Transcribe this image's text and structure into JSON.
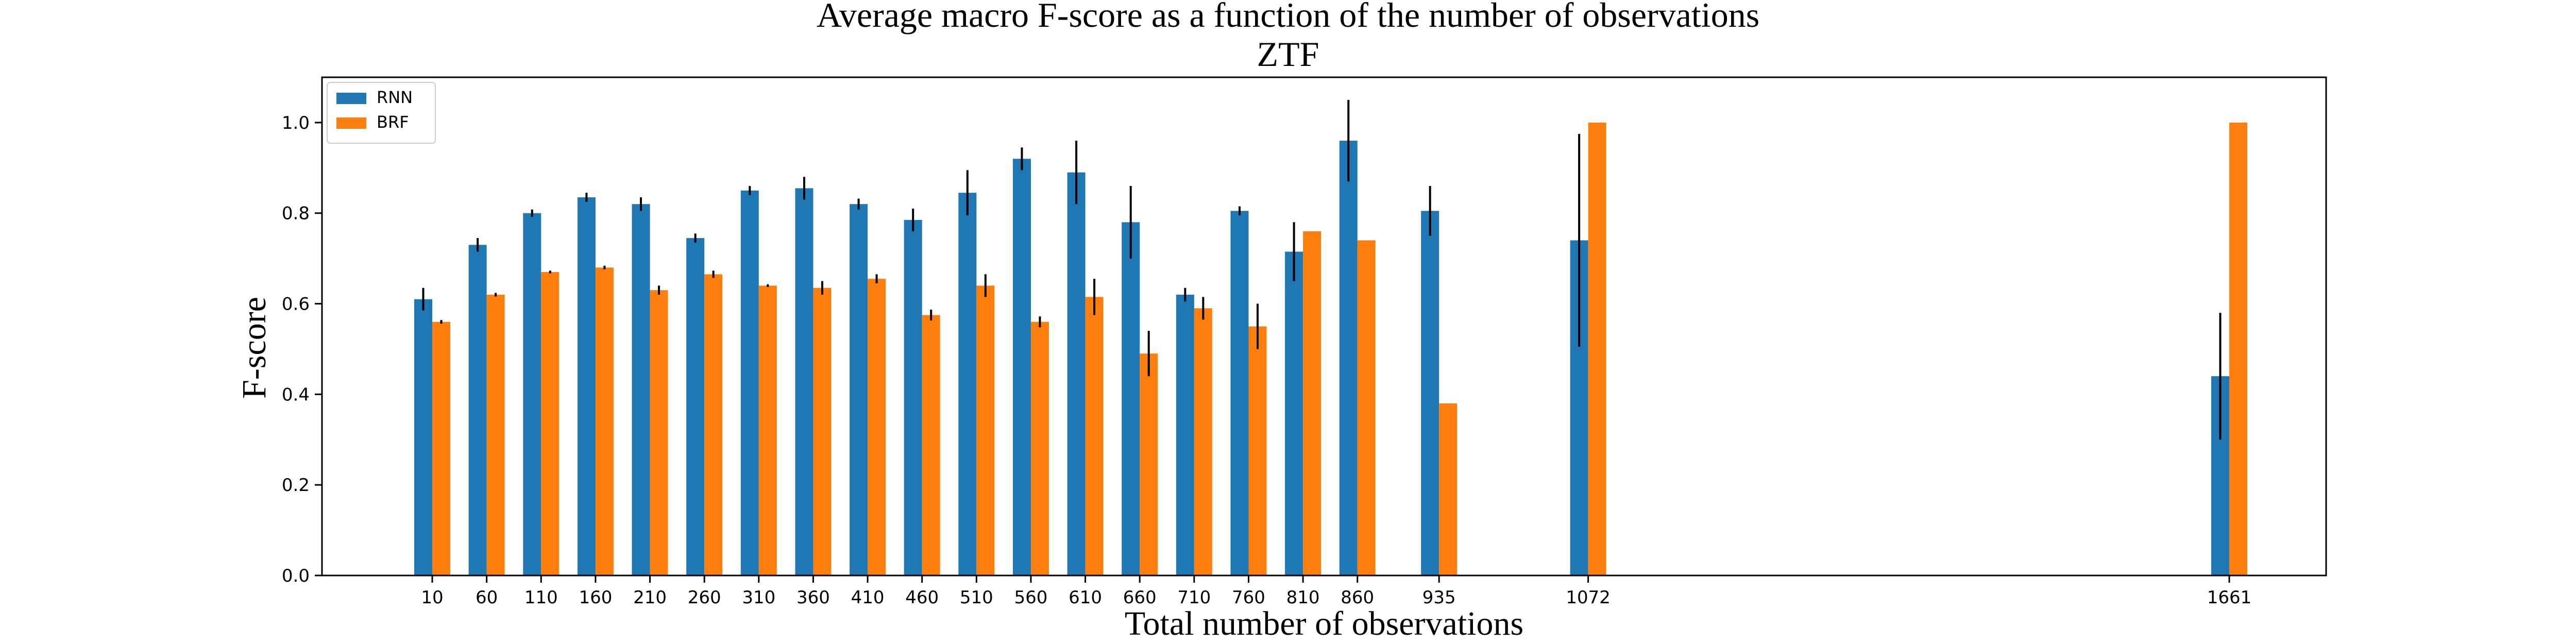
{
  "chart_data": {
    "type": "bar",
    "title": "Average macro F-score as a function of the number of observations",
    "subtitle": "ZTF",
    "xlabel": "Total number of observations",
    "ylabel": "F-score",
    "ylim": [
      0,
      1.1
    ],
    "yticks": [
      "0.0",
      "0.2",
      "0.4",
      "0.6",
      "0.8",
      "1.0"
    ],
    "x": [
      10,
      60,
      110,
      160,
      210,
      260,
      310,
      360,
      410,
      460,
      510,
      560,
      610,
      660,
      710,
      760,
      810,
      860,
      935,
      1072,
      1661
    ],
    "categories": [
      "10",
      "60",
      "110",
      "160",
      "210",
      "260",
      "310",
      "360",
      "410",
      "460",
      "510",
      "560",
      "610",
      "660",
      "710",
      "760",
      "810",
      "860",
      "935",
      "1072",
      "1661"
    ],
    "legend_position": "top-left",
    "grid": false,
    "series": [
      {
        "name": "RNN",
        "color": "#1f77b4",
        "values": [
          0.61,
          0.73,
          0.8,
          0.835,
          0.82,
          0.745,
          0.85,
          0.855,
          0.82,
          0.785,
          0.845,
          0.92,
          0.89,
          0.78,
          0.62,
          0.805,
          0.715,
          0.96,
          0.805,
          0.74,
          0.44
        ],
        "errors": [
          0.025,
          0.015,
          0.008,
          0.01,
          0.015,
          0.01,
          0.01,
          0.025,
          0.012,
          0.025,
          0.05,
          0.025,
          0.07,
          0.08,
          0.015,
          0.01,
          0.065,
          0.09,
          0.055,
          0.235,
          0.14
        ]
      },
      {
        "name": "BRF",
        "color": "#ff7f0e",
        "values": [
          0.56,
          0.62,
          0.67,
          0.68,
          0.63,
          0.665,
          0.64,
          0.635,
          0.655,
          0.575,
          0.64,
          0.56,
          0.615,
          0.49,
          0.59,
          0.55,
          0.76,
          0.74,
          0.38,
          1.0,
          1.0
        ],
        "errors": [
          0.004,
          0.004,
          0.003,
          0.004,
          0.01,
          0.008,
          0.003,
          0.015,
          0.01,
          0.012,
          0.025,
          0.012,
          0.04,
          0.05,
          0.025,
          0.05,
          0.0,
          0.0,
          0.0,
          0.0,
          0.0
        ]
      }
    ]
  }
}
